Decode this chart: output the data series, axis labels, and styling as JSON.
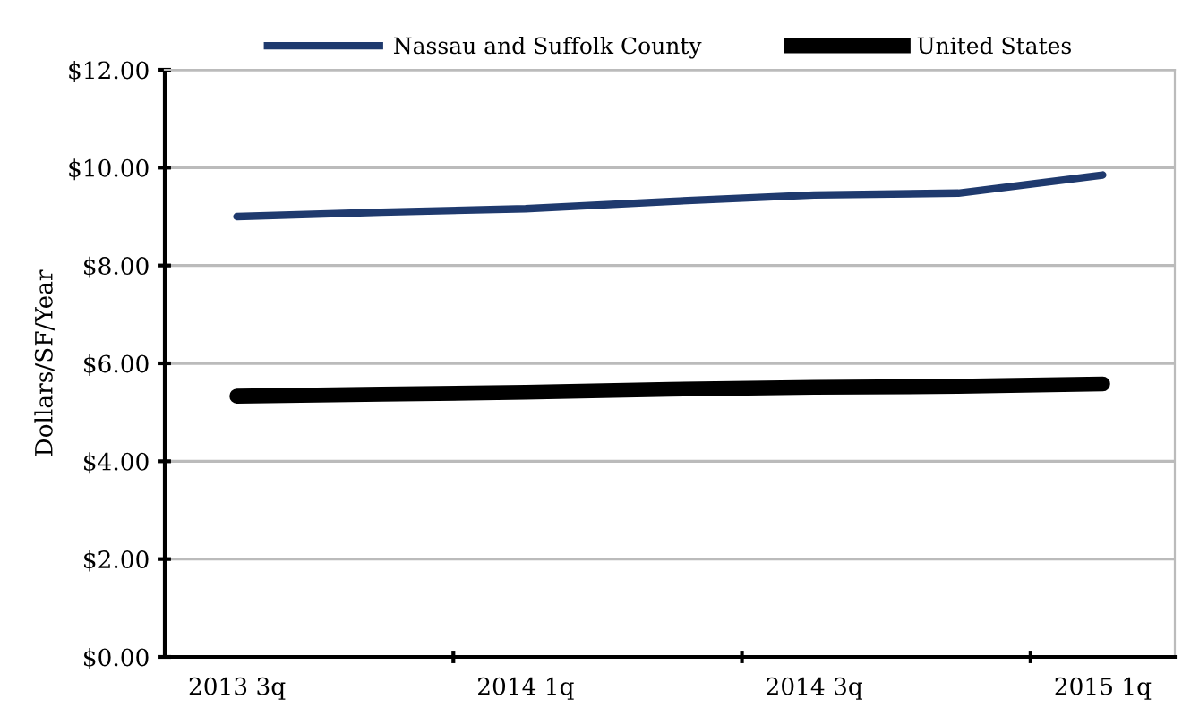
{
  "chart_data": {
    "type": "line",
    "ylabel": "Dollars/SF/Year",
    "categories": [
      "2013 3q",
      null,
      "2014 1q",
      null,
      "2014 3q",
      null,
      "2015 1q"
    ],
    "series": [
      {
        "name": "Nassau and Suffolk County",
        "color": "#1f3a6e",
        "values": [
          9.0,
          9.09,
          9.16,
          9.31,
          9.44,
          9.48,
          9.85
        ]
      },
      {
        "name": "United States",
        "color": "#000000",
        "values": [
          5.33,
          5.37,
          5.41,
          5.47,
          5.51,
          5.53,
          5.58
        ]
      }
    ],
    "ylim": [
      0,
      12
    ],
    "yticks": [
      {
        "value": 0,
        "label": "$0.00"
      },
      {
        "value": 2,
        "label": "$2.00"
      },
      {
        "value": 4,
        "label": "$4.00"
      },
      {
        "value": 6,
        "label": "$6.00"
      },
      {
        "value": 8,
        "label": "$8.00"
      },
      {
        "value": 10,
        "label": "$10.00"
      },
      {
        "value": 12,
        "label": "$12.00"
      }
    ],
    "grid": "y",
    "legend": "top",
    "marker": "none",
    "line_style": "solid"
  }
}
